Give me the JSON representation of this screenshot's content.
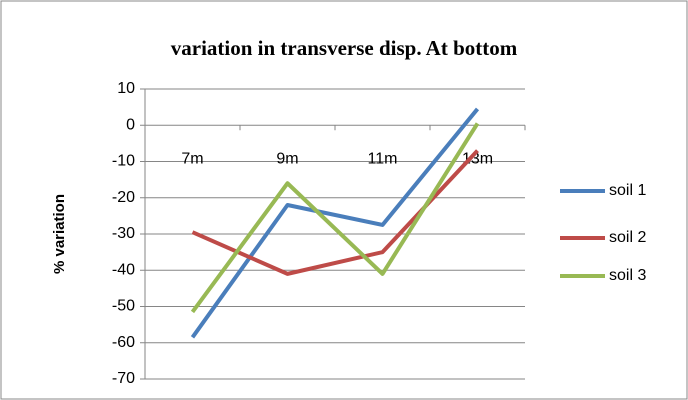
{
  "chart_data": {
    "type": "line",
    "title": "variation in transverse disp. At bottom",
    "y_label": "% variation",
    "categories": [
      "7m",
      "9m",
      "11m",
      "13m"
    ],
    "series": [
      {
        "name": "soil 1",
        "color": "#4a7ebb",
        "values": [
          -58.5,
          -22,
          -27.5,
          4.5
        ]
      },
      {
        "name": "soil 2",
        "color": "#be4b48",
        "values": [
          -29.5,
          -41,
          -35,
          -7
        ]
      },
      {
        "name": "soil 3",
        "color": "#98b954",
        "values": [
          -51.5,
          -16,
          -41,
          0.5
        ]
      }
    ],
    "ylim": [
      -70,
      10
    ],
    "yticks": [
      -70,
      -60,
      -50,
      -40,
      -30,
      -20,
      -10,
      0,
      10
    ],
    "grid": true,
    "legend": "right"
  }
}
